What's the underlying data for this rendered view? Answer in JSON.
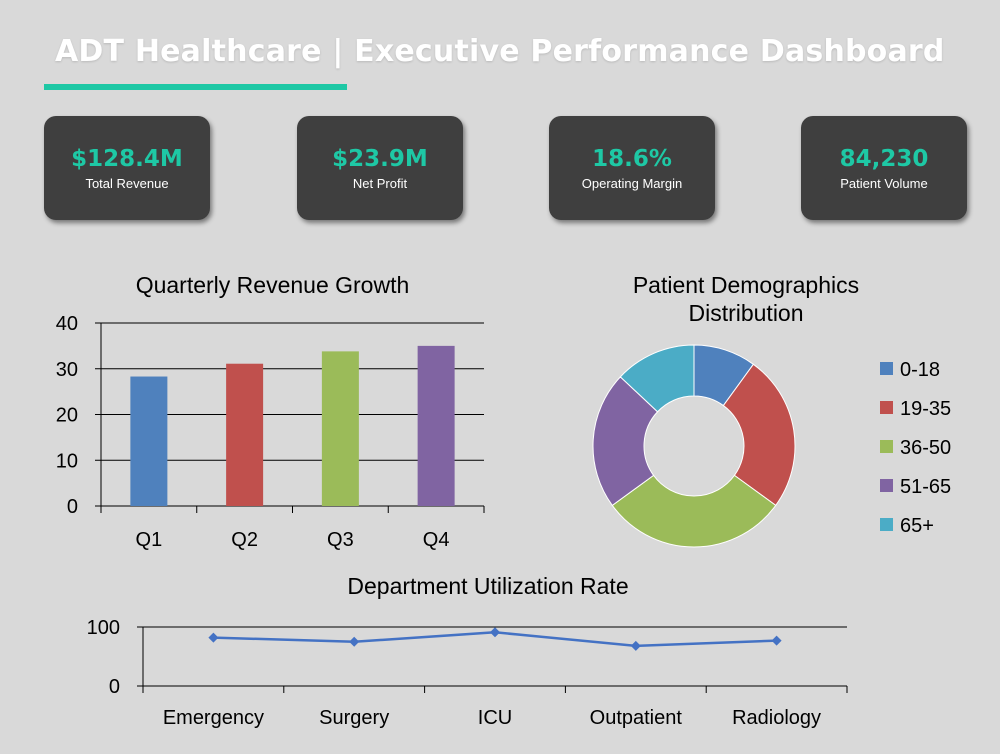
{
  "header": {
    "title": "ADT Healthcare | Executive Performance Dashboard",
    "accent": "#1ec8a5"
  },
  "kpis": [
    {
      "value": "$128.4M",
      "label": "Total Revenue"
    },
    {
      "value": "$23.9M",
      "label": "Net Profit"
    },
    {
      "value": "18.6%",
      "label": "Operating Margin"
    },
    {
      "value": "84,230",
      "label": "Patient Volume"
    }
  ],
  "kpi_value_color": "#1ec8a5",
  "chart_data": [
    {
      "type": "bar",
      "title": "Quarterly Revenue Growth",
      "categories": [
        "Q1",
        "Q2",
        "Q3",
        "Q4"
      ],
      "values": [
        28.3,
        31.1,
        33.8,
        35.0
      ],
      "colors": [
        "#4f81bd",
        "#c0504d",
        "#9bbb59",
        "#8064a2"
      ],
      "ylim": [
        0,
        40
      ],
      "yticks": [
        0,
        10,
        20,
        30,
        40
      ],
      "grid": true,
      "xlabel": "",
      "ylabel": ""
    },
    {
      "type": "pie",
      "donut": true,
      "title_lines": [
        "Patient Demographics",
        "Distribution"
      ],
      "labels": [
        "0-18",
        "19-35",
        "36-50",
        "51-65",
        "65+"
      ],
      "values": [
        10,
        25,
        30,
        22,
        13
      ],
      "colors": [
        "#4f81bd",
        "#c0504d",
        "#9bbb59",
        "#8064a2",
        "#4bacc6"
      ],
      "legend": "right"
    },
    {
      "type": "line",
      "title": "Department Utilization Rate",
      "categories": [
        "Emergency",
        "Surgery",
        "ICU",
        "Outpatient",
        "Radiology"
      ],
      "values": [
        82,
        75,
        91,
        68,
        77
      ],
      "color": "#4472c4",
      "ylim": [
        0,
        100
      ],
      "yticks": [
        0,
        100
      ],
      "grid": true
    }
  ]
}
